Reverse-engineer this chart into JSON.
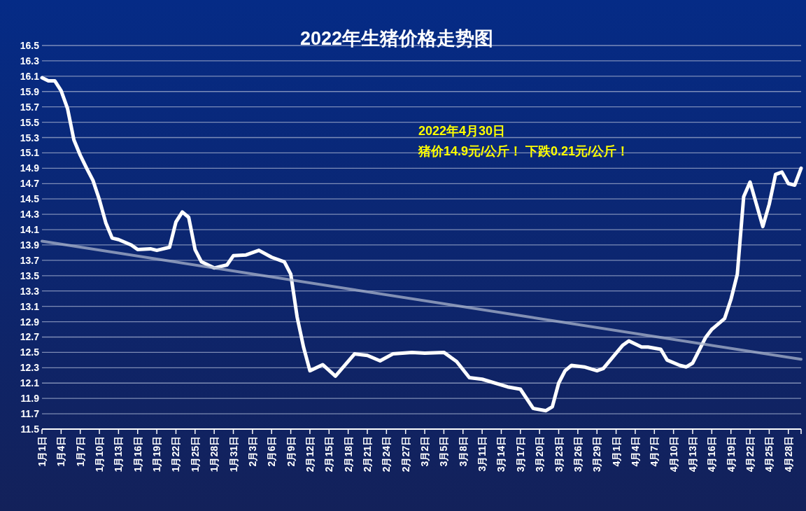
{
  "chart_data": {
    "type": "line",
    "title": "2022年生猪价格走势图",
    "annotations": [
      "2022年4月30日",
      "猪价14.9元/公斤！ 下跌0.21元/公斤！"
    ],
    "ylim": [
      11.5,
      16.5
    ],
    "yticks": [
      11.5,
      11.7,
      11.9,
      12.1,
      12.3,
      12.5,
      12.7,
      12.9,
      13.1,
      13.3,
      13.5,
      13.7,
      13.9,
      14.1,
      14.3,
      14.5,
      14.7,
      14.9,
      15.1,
      15.3,
      15.5,
      15.7,
      15.9,
      16.1,
      16.3,
      16.5
    ],
    "xlim": [
      "--01-01",
      "--04-30"
    ],
    "xticks": [
      {
        "value": "--01-01",
        "label": "1月1日"
      },
      {
        "value": "--01-04",
        "label": "1月4日"
      },
      {
        "value": "--01-07",
        "label": "1月7日"
      },
      {
        "value": "--01-10",
        "label": "1月10日"
      },
      {
        "value": "--01-13",
        "label": "1月13日"
      },
      {
        "value": "--01-16",
        "label": "1月16日"
      },
      {
        "value": "--01-19",
        "label": "1月19日"
      },
      {
        "value": "--01-22",
        "label": "1月22日"
      },
      {
        "value": "--01-25",
        "label": "1月25日"
      },
      {
        "value": "--01-28",
        "label": "1月28日"
      },
      {
        "value": "--01-31",
        "label": "1月31日"
      },
      {
        "value": "--02-03",
        "label": "2月3日"
      },
      {
        "value": "--02-06",
        "label": "2月6日"
      },
      {
        "value": "--02-09",
        "label": "2月9日"
      },
      {
        "value": "--02-12",
        "label": "2月12日"
      },
      {
        "value": "--02-15",
        "label": "2月15日"
      },
      {
        "value": "--02-18",
        "label": "2月18日"
      },
      {
        "value": "--02-21",
        "label": "2月21日"
      },
      {
        "value": "--02-24",
        "label": "2月24日"
      },
      {
        "value": "--02-27",
        "label": "2月27日"
      },
      {
        "value": "--03-02",
        "label": "3月2日"
      },
      {
        "value": "--03-05",
        "label": "3月5日"
      },
      {
        "value": "--03-08",
        "label": "3月8日"
      },
      {
        "value": "--03-11",
        "label": "3月11日"
      },
      {
        "value": "--03-14",
        "label": "3月14日"
      },
      {
        "value": "--03-17",
        "label": "3月17日"
      },
      {
        "value": "--03-20",
        "label": "3月20日"
      },
      {
        "value": "--03-23",
        "label": "3月23日"
      },
      {
        "value": "--03-26",
        "label": "3月26日"
      },
      {
        "value": "--03-29",
        "label": "3月29日"
      },
      {
        "value": "--04-01",
        "label": "4月1日"
      },
      {
        "value": "--04-04",
        "label": "4月4日"
      },
      {
        "value": "--04-07",
        "label": "4月7日"
      },
      {
        "value": "--04-10",
        "label": "4月10日"
      },
      {
        "value": "--04-13",
        "label": "4月13日"
      },
      {
        "value": "--04-16",
        "label": "4月16日"
      },
      {
        "value": "--04-19",
        "label": "4月19日"
      },
      {
        "value": "--04-22",
        "label": "4月22日"
      },
      {
        "value": "--04-25",
        "label": "4月25日"
      },
      {
        "value": "--04-28",
        "label": "4月28日"
      }
    ],
    "grid": "y",
    "series": [
      {
        "color": "#ffffff",
        "x": [
          "--01-01",
          "--01-02",
          "--01-03",
          "--01-04",
          "--01-05",
          "--01-06",
          "--01-07",
          "--01-08",
          "--01-09",
          "--01-10",
          "--01-11",
          "--01-12",
          "--01-13",
          "--01-15",
          "--01-16",
          "--01-18",
          "--01-19",
          "--01-21",
          "--01-22",
          "--01-23",
          "--01-24",
          "--01-25",
          "--01-26",
          "--01-28",
          "--01-30",
          "--01-31",
          "--02-02",
          "--02-04",
          "--02-06",
          "--02-08",
          "--02-09",
          "--02-10",
          "--02-11",
          "--02-12",
          "--02-14",
          "--02-16",
          "--02-19",
          "--02-21",
          "--02-23",
          "--02-25",
          "--02-28",
          "--03-02",
          "--03-05",
          "--03-07",
          "--03-09",
          "--03-11",
          "--03-15",
          "--03-17",
          "--03-19",
          "--03-21",
          "--03-22",
          "--03-23",
          "--03-24",
          "--03-25",
          "--03-27",
          "--03-29",
          "--03-30",
          "--04-02",
          "--04-03",
          "--04-05",
          "--04-06",
          "--04-08",
          "--04-09",
          "--04-11",
          "--04-12",
          "--04-13",
          "--04-15",
          "--04-16",
          "--04-18",
          "--04-19",
          "--04-20",
          "--04-21",
          "--04-22",
          "--04-23",
          "--04-24",
          "--04-25",
          "--04-26",
          "--04-27",
          "--04-28",
          "--04-29",
          "--04-30"
        ],
        "values": [
          16.08,
          16.04,
          16.04,
          15.91,
          15.68,
          15.27,
          15.07,
          14.9,
          14.74,
          14.49,
          14.19,
          13.99,
          13.97,
          13.9,
          13.84,
          13.85,
          13.83,
          13.87,
          14.2,
          14.33,
          14.26,
          13.84,
          13.68,
          13.6,
          13.64,
          13.76,
          13.77,
          13.83,
          13.74,
          13.68,
          13.52,
          12.96,
          12.57,
          12.26,
          12.34,
          12.19,
          12.48,
          12.46,
          12.39,
          12.48,
          12.5,
          12.49,
          12.5,
          12.38,
          12.17,
          12.15,
          12.05,
          12.02,
          11.77,
          11.74,
          11.79,
          12.1,
          12.26,
          12.33,
          12.31,
          12.26,
          12.29,
          12.59,
          12.65,
          12.57,
          12.57,
          12.54,
          12.4,
          12.33,
          12.31,
          12.36,
          12.69,
          12.8,
          12.94,
          13.19,
          13.52,
          14.53,
          14.72,
          14.43,
          14.14,
          14.43,
          14.82,
          14.85,
          14.7,
          14.68,
          14.9
        ]
      },
      {
        "type": "line",
        "color": "#a9b4cc",
        "x": [
          "--01-01",
          "--04-30"
        ],
        "values": [
          13.95,
          12.41
        ]
      }
    ]
  }
}
